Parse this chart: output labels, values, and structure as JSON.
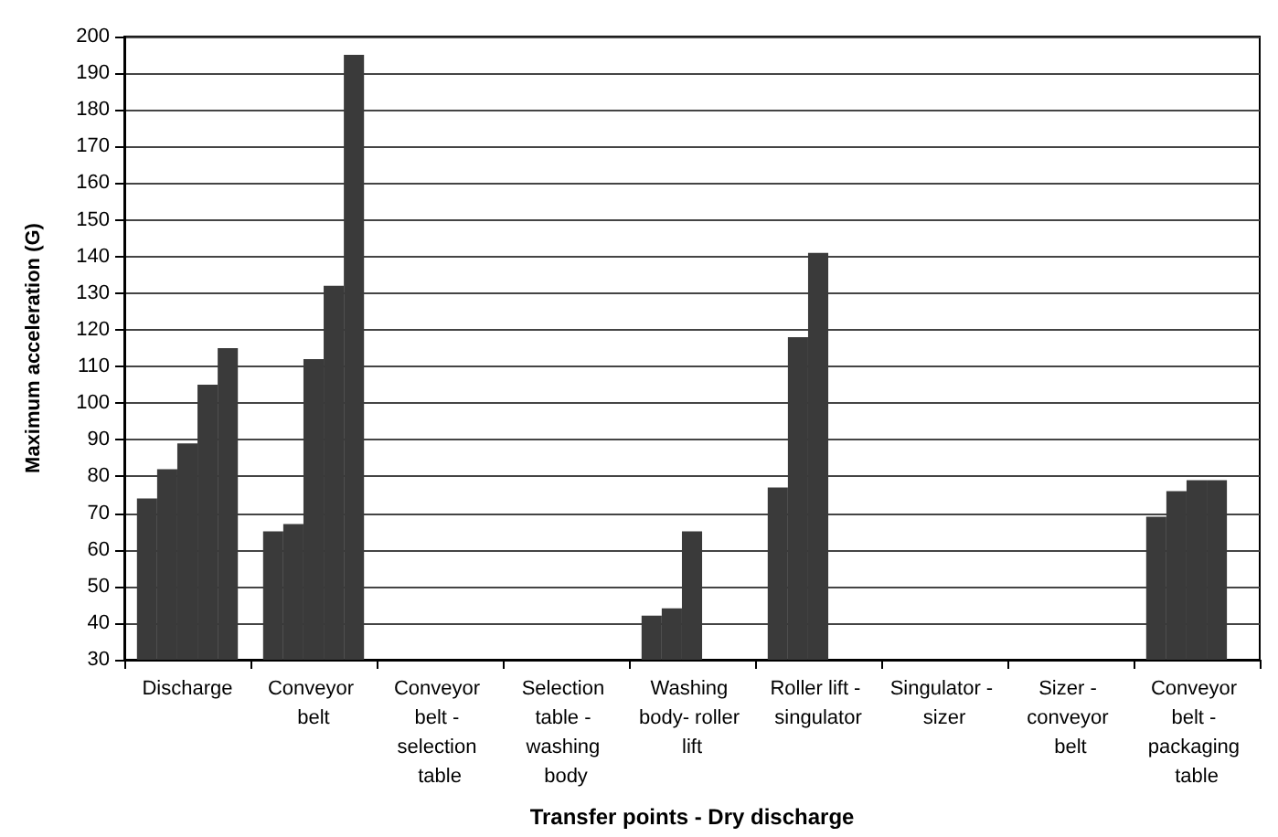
{
  "chart_data": {
    "type": "bar",
    "xlabel": "Transfer points - Dry discharge",
    "ylabel": "Maximum acceleration (G)",
    "categories": [
      "Discharge",
      "Conveyor belt",
      "Conveyor belt - selection table",
      "Selection table - washing body",
      "Washing body- roller lift",
      "Roller lift - singulator",
      "Singulator - sizer",
      "Sizer - conveyor belt",
      "Conveyor belt - packaging table"
    ],
    "series": [
      {
        "color": "#3a3a3a",
        "values": [
          74,
          65,
          null,
          null,
          42,
          77,
          null,
          null,
          69
        ]
      },
      {
        "color": "#3a3a3a",
        "values": [
          82,
          67,
          null,
          null,
          44,
          118,
          null,
          null,
          76
        ]
      },
      {
        "color": "#3a3a3a",
        "values": [
          89,
          112,
          null,
          null,
          65,
          141,
          null,
          null,
          79
        ]
      },
      {
        "color": "#3a3a3a",
        "values": [
          105,
          132,
          null,
          null,
          null,
          null,
          null,
          null,
          79
        ]
      },
      {
        "color": "#3a3a3a",
        "values": [
          115,
          195,
          null,
          null,
          null,
          null,
          null,
          null,
          null
        ]
      }
    ],
    "ylim": [
      30,
      200
    ],
    "yticks": [
      30,
      40,
      50,
      60,
      70,
      80,
      90,
      100,
      110,
      120,
      130,
      140,
      150,
      160,
      170,
      180,
      190,
      200
    ],
    "grid": "y"
  }
}
